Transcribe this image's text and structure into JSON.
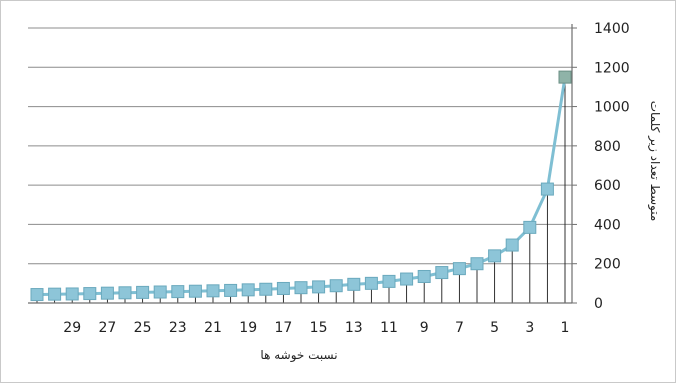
{
  "chart_data": {
    "type": "line",
    "x_axis_reversed": true,
    "x_tick_labels": [
      "1",
      "3",
      "5",
      "7",
      "9",
      "11",
      "13",
      "15",
      "17",
      "19",
      "21",
      "23",
      "25",
      "27",
      "29"
    ],
    "y_tick_labels": [
      "0",
      "200",
      "400",
      "600",
      "800",
      "1000",
      "1200",
      "1400"
    ],
    "ylim": [
      0,
      1400
    ],
    "xlabel": "نسبت خوشه ها",
    "ylabel": "متوسط تعداد زیر کلمات",
    "grid": "horizontal",
    "legend": "none",
    "series": [
      {
        "x": [
          1,
          2,
          3,
          4,
          5,
          6,
          7,
          8,
          9,
          10,
          11,
          12,
          13,
          14,
          15,
          16,
          17,
          18,
          19,
          20,
          21,
          22,
          23,
          24,
          25,
          26,
          27,
          28,
          29,
          30,
          31
        ],
        "values": [
          1150,
          580,
          385,
          295,
          240,
          200,
          175,
          155,
          135,
          122,
          110,
          100,
          95,
          88,
          82,
          78,
          74,
          70,
          67,
          64,
          62,
          60,
          58,
          56,
          54,
          52,
          50,
          48,
          46,
          45,
          43
        ],
        "line_color": "#7fbfd3",
        "marker": "square",
        "marker_color": "#8dc5d8",
        "marker_edge": "#6aa9bd"
      }
    ]
  }
}
